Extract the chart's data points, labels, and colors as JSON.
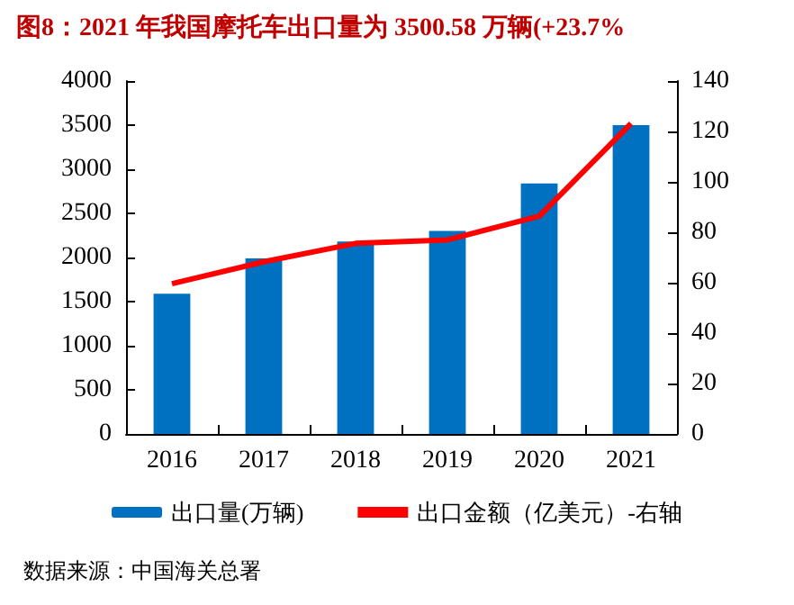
{
  "chart_data": {
    "type": "bar",
    "title": "图8：2021 年我国摩托车出口量为 3500.58 万辆(+23.7%",
    "categories": [
      "2016",
      "2017",
      "2018",
      "2019",
      "2020",
      "2021"
    ],
    "series": [
      {
        "name": "出口量(万辆)",
        "color": "#0070c0",
        "values": [
          1590,
          1990,
          2180,
          2300,
          2840,
          3500
        ]
      },
      {
        "name": "出口金额（亿美元）-右轴",
        "type": "line",
        "axis": "y2",
        "color": "#ff0000",
        "values": [
          59.6,
          68.3,
          75.6,
          77,
          86.4,
          123.2
        ]
      }
    ],
    "ylim": [
      0,
      4000
    ],
    "yticks": [
      0,
      500,
      1000,
      1500,
      2000,
      2500,
      3000,
      3500,
      4000
    ],
    "y2lim": [
      0,
      140
    ],
    "y2ticks": [
      0,
      20,
      40,
      60,
      80,
      100,
      120,
      140
    ],
    "grid": false,
    "legend": "bottom",
    "marker": "none",
    "annotations": [
      "数据来源：中国海关总署"
    ]
  }
}
